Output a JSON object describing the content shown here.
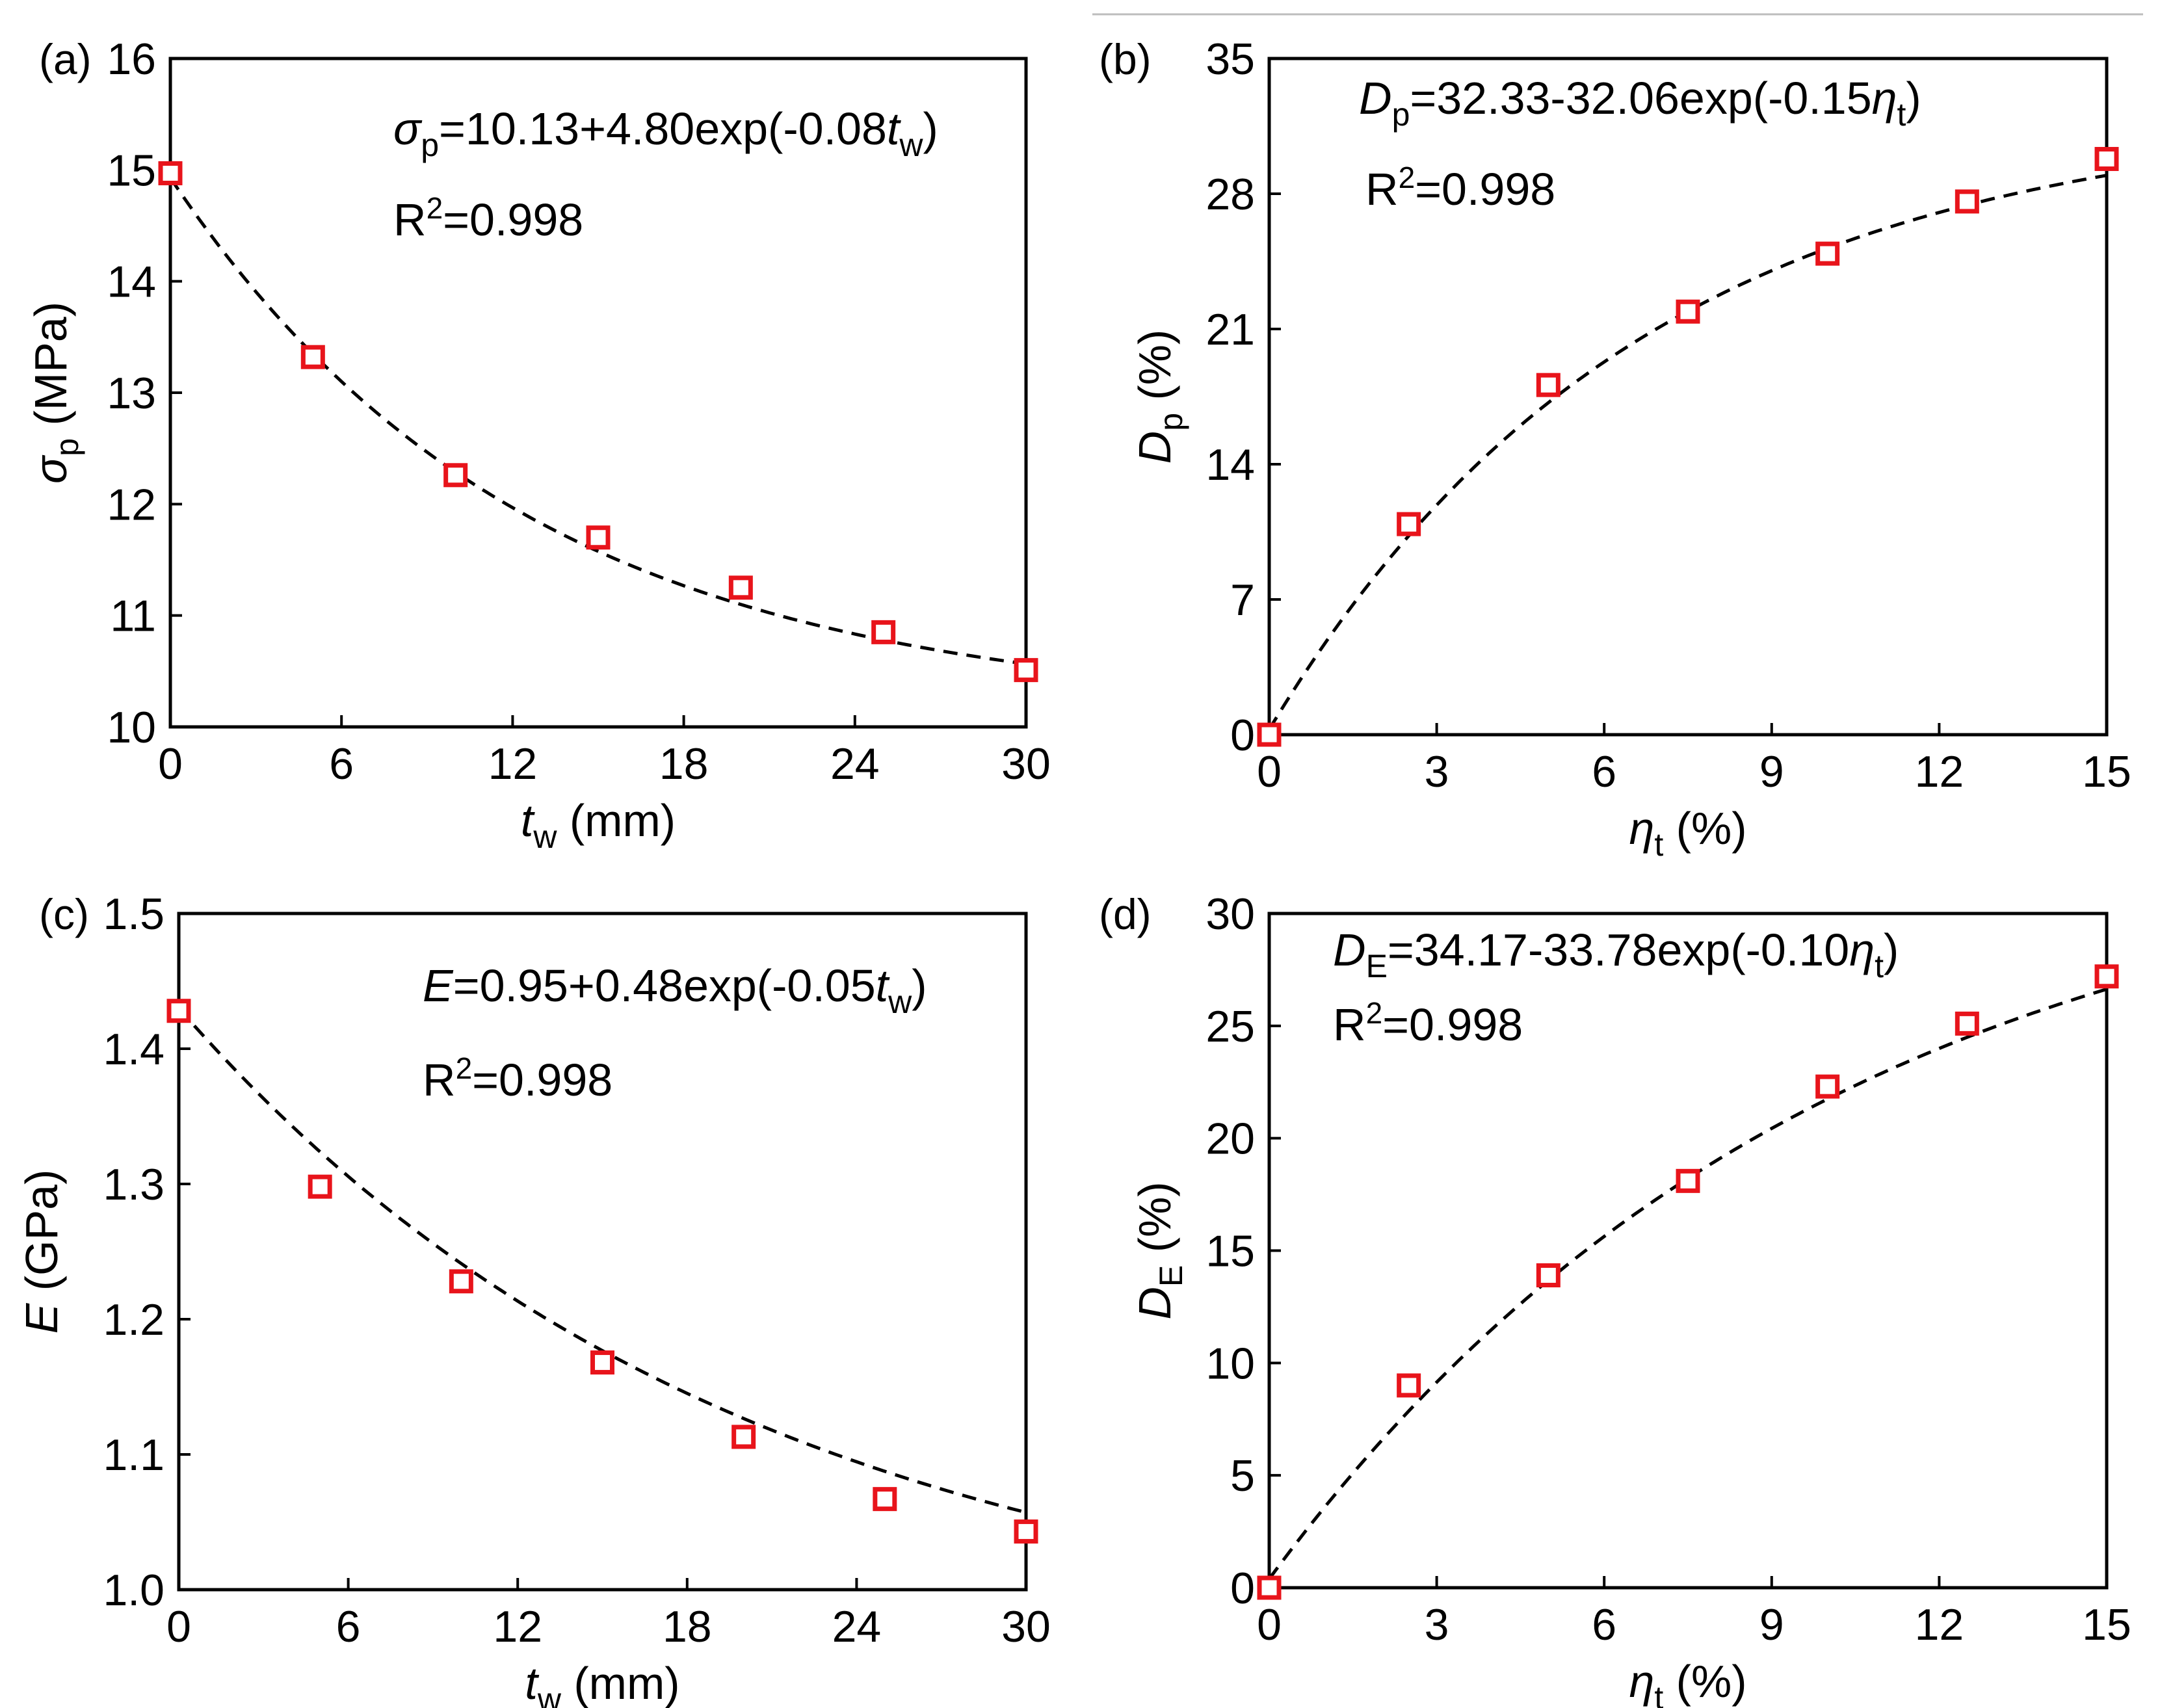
{
  "colors": {
    "marker": "#e8141b",
    "fit_line": "#000000",
    "axes": "#000000"
  },
  "chart_data": [
    {
      "id": "a",
      "type": "scatter",
      "panel_label": "(a)",
      "x": [
        0,
        5,
        10,
        15,
        20,
        25,
        30
      ],
      "y": [
        14.97,
        13.32,
        12.26,
        11.7,
        11.25,
        10.85,
        10.51
      ],
      "xlim": [
        0,
        30
      ],
      "ylim": [
        10,
        16
      ],
      "xticks": [
        "0",
        "6",
        "12",
        "18",
        "24",
        "30"
      ],
      "yticks": [
        "10",
        "11",
        "12",
        "13",
        "14",
        "15",
        "16"
      ],
      "xlabel": {
        "var": "t",
        "sub": "w",
        "unit": " (mm)"
      },
      "ylabel": {
        "var": "σ",
        "sub": "p",
        "unit": " (MPa)"
      },
      "fit": {
        "a": 10.13,
        "b": 4.8,
        "c": -0.08
      },
      "equation": {
        "lhs": "σ",
        "lhs_sub": "p",
        "rhs": "=10.13+4.80exp(-0.08",
        "var": "t",
        "var_sub": "w",
        "close": ")"
      },
      "r2": {
        "base": "R",
        "sup": "2",
        "value": "=0.998"
      }
    },
    {
      "id": "b",
      "type": "scatter",
      "panel_label": "(b)",
      "x": [
        0,
        2.5,
        5,
        7.5,
        10,
        12.5,
        15
      ],
      "y": [
        0.0,
        10.9,
        18.1,
        21.9,
        24.9,
        27.6,
        29.8
      ],
      "xlim": [
        0,
        15
      ],
      "ylim": [
        0,
        35
      ],
      "xticks": [
        "0",
        "3",
        "6",
        "9",
        "12",
        "15"
      ],
      "yticks": [
        "0",
        "7",
        "14",
        "21",
        "28",
        "35"
      ],
      "xlabel": {
        "var": "η",
        "sub": "t",
        "unit": " (%)"
      },
      "ylabel": {
        "var": "D",
        "sub": "p",
        "unit": " (%)"
      },
      "fit": {
        "a": 32.33,
        "b": -32.06,
        "c": -0.15
      },
      "equation": {
        "lhs": "D",
        "lhs_sub": "p",
        "rhs": "=32.33-32.06exp(-0.15",
        "var": "η",
        "var_sub": "t",
        "close": ")"
      },
      "r2": {
        "base": "R",
        "sup": "2",
        "value": "=0.998"
      }
    },
    {
      "id": "c",
      "type": "scatter",
      "panel_label": "(c)",
      "x": [
        0,
        5,
        10,
        15,
        20,
        25,
        30
      ],
      "y": [
        1.428,
        1.298,
        1.228,
        1.168,
        1.113,
        1.067,
        1.043
      ],
      "xlim": [
        0,
        30
      ],
      "ylim": [
        1.0,
        1.5
      ],
      "xticks": [
        "0",
        "6",
        "12",
        "18",
        "24",
        "30"
      ],
      "yticks": [
        "1.0",
        "1.1",
        "1.2",
        "1.3",
        "1.4",
        "1.5"
      ],
      "xlabel": {
        "var": "t",
        "sub": "w",
        "unit": " (mm)"
      },
      "ylabel": {
        "var": "E",
        "sub": "",
        "unit": " (GPa)"
      },
      "fit": {
        "a": 0.95,
        "b": 0.48,
        "c": -0.05
      },
      "equation": {
        "lhs": "E",
        "lhs_sub": "",
        "rhs": "=0.95+0.48exp(-0.05",
        "var": "t",
        "var_sub": "w",
        "close": ")"
      },
      "r2": {
        "base": "R",
        "sup": "2",
        "value": "=0.998"
      }
    },
    {
      "id": "d",
      "type": "scatter",
      "panel_label": "(d)",
      "x": [
        0,
        2.5,
        5,
        7.5,
        10,
        12.5,
        15
      ],
      "y": [
        0.0,
        9.0,
        13.9,
        18.1,
        22.3,
        25.1,
        27.2
      ],
      "xlim": [
        0,
        15
      ],
      "ylim": [
        0,
        30
      ],
      "xticks": [
        "0",
        "3",
        "6",
        "9",
        "12",
        "15"
      ],
      "yticks": [
        "0",
        "5",
        "10",
        "15",
        "20",
        "25",
        "30"
      ],
      "xlabel": {
        "var": "η",
        "sub": "t",
        "unit": " (%)"
      },
      "ylabel": {
        "var": "D",
        "sub": "E",
        "unit": " (%)"
      },
      "fit": {
        "a": 34.17,
        "b": -33.78,
        "c": -0.1
      },
      "equation": {
        "lhs": "D",
        "lhs_sub": "E",
        "rhs": "=34.17-33.78exp(-0.10",
        "var": "η",
        "var_sub": "t",
        "close": ")"
      },
      "r2": {
        "base": "R",
        "sup": "2",
        "value": "=0.998"
      }
    }
  ]
}
